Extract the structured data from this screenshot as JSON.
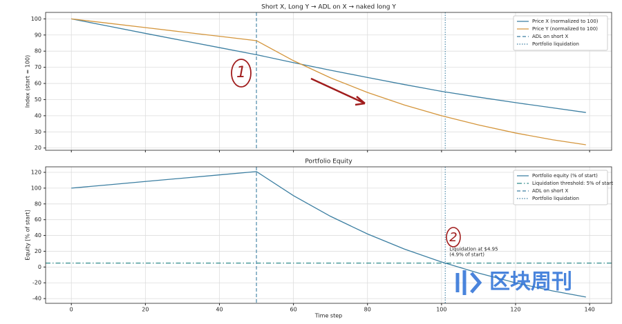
{
  "chart_data": [
    {
      "type": "line",
      "title": "Short X, Long Y → ADL on X → naked long Y",
      "ylabel": "Index (start = 100)",
      "x": [
        0,
        10,
        20,
        30,
        40,
        50,
        60,
        70,
        80,
        90,
        100,
        110,
        120,
        130,
        139
      ],
      "series": [
        {
          "name": "Price X (normalized to 100)",
          "color": "#3b7ea1",
          "values": [
            100,
            95.5,
            91,
            86.6,
            82.2,
            77.8,
            72.9,
            68.2,
            63.7,
            59.3,
            55.1,
            51.5,
            48.1,
            44.9,
            42
          ]
        },
        {
          "name": "Price Y (normalized to 100)",
          "color": "#d4953b",
          "values": [
            100,
            97.3,
            94.6,
            91.9,
            89.2,
            86.5,
            74.1,
            63.5,
            54.4,
            46.6,
            40,
            34.3,
            29.3,
            25.1,
            22
          ]
        }
      ],
      "vlines": [
        {
          "name": "ADL on short X",
          "x": 50,
          "color": "#3b7ea1",
          "style": "dashed"
        },
        {
          "name": "Portfolio liquidation",
          "x": 101,
          "color": "#3b7ea1",
          "style": "dotted"
        }
      ],
      "xlim": [
        -6.95,
        145.95
      ],
      "ylim": [
        18.6,
        104
      ],
      "yticks": [
        20,
        30,
        40,
        50,
        60,
        70,
        80,
        90,
        100
      ],
      "sharex": true,
      "grid": true,
      "legend": "upper right"
    },
    {
      "type": "line",
      "title": "Portfolio Equity",
      "ylabel": "Equity [% of start]",
      "xlabel": "Time step",
      "x": [
        0,
        10,
        20,
        30,
        40,
        50,
        60,
        70,
        80,
        90,
        100,
        110,
        120,
        130,
        139
      ],
      "series": [
        {
          "name": "Portfolio equity (% of start)",
          "color": "#3b7ea1",
          "values": [
            100,
            104.2,
            108.4,
            112.6,
            116.8,
            121,
            90.5,
            64.3,
            41.9,
            22.7,
            6.4,
            -7.7,
            -20,
            -30.3,
            -38
          ]
        }
      ],
      "hlines": [
        {
          "name": "Liquidation threshold: 5% of start",
          "y": 5,
          "color": "#2f8a8a",
          "style": "dashdot"
        }
      ],
      "vlines": [
        {
          "name": "ADL on short X",
          "x": 50,
          "color": "#3b7ea1",
          "style": "dashed"
        },
        {
          "name": "Portfolio liquidation",
          "x": 101,
          "color": "#3b7ea1",
          "style": "dotted"
        }
      ],
      "annotations": [
        "Liquidation at $4.95",
        "(4.9% of start)"
      ],
      "xlim": [
        -6.95,
        145.95
      ],
      "ylim": [
        -46,
        127
      ],
      "xticks": [
        0,
        20,
        40,
        60,
        80,
        100,
        120,
        140
      ],
      "yticks": [
        -40,
        -20,
        0,
        20,
        40,
        60,
        80,
        100,
        120
      ],
      "grid": true,
      "legend": "upper right"
    }
  ],
  "handwritten": [
    "1",
    "2"
  ],
  "watermark": "区块周刊"
}
